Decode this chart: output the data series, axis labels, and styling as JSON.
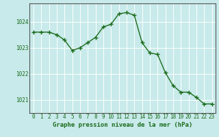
{
  "x": [
    0,
    1,
    2,
    3,
    4,
    5,
    6,
    7,
    8,
    9,
    10,
    11,
    12,
    13,
    14,
    15,
    16,
    17,
    18,
    19,
    20,
    21,
    22,
    23
  ],
  "y": [
    1023.6,
    1023.6,
    1023.6,
    1023.5,
    1023.3,
    1022.9,
    1023.0,
    1023.2,
    1023.4,
    1023.8,
    1023.9,
    1024.3,
    1024.35,
    1024.25,
    1023.2,
    1022.8,
    1022.75,
    1022.05,
    1021.55,
    1021.3,
    1021.3,
    1021.1,
    1020.85,
    1020.85
  ],
  "line_color": "#1a6b1a",
  "marker": "+",
  "marker_size": 4,
  "marker_linewidth": 1.0,
  "background_color": "#c8eaea",
  "grid_color": "#ffffff",
  "xlabel": "Graphe pression niveau de la mer (hPa)",
  "xlabel_color": "#1a6b1a",
  "tick_color": "#1a6b1a",
  "spine_color": "#555555",
  "ylim": [
    1020.5,
    1024.7
  ],
  "yticks": [
    1021,
    1022,
    1023,
    1024
  ],
  "xticks": [
    0,
    1,
    2,
    3,
    4,
    5,
    6,
    7,
    8,
    9,
    10,
    11,
    12,
    13,
    14,
    15,
    16,
    17,
    18,
    19,
    20,
    21,
    22,
    23
  ],
  "tick_fontsize": 5.5,
  "xlabel_fontsize": 6.5,
  "linewidth": 1.0
}
